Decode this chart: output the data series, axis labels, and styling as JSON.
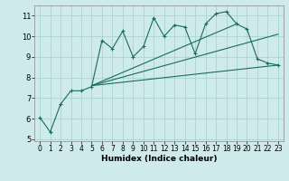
{
  "xlabel": "Humidex (Indice chaleur)",
  "bg_color": "#ceeaea",
  "line_color": "#1a6b60",
  "grid_color": "#aad4d4",
  "xlim": [
    -0.5,
    23.5
  ],
  "ylim": [
    4.9,
    11.5
  ],
  "xticks": [
    0,
    1,
    2,
    3,
    4,
    5,
    6,
    7,
    8,
    9,
    10,
    11,
    12,
    13,
    14,
    15,
    16,
    17,
    18,
    19,
    20,
    21,
    22,
    23
  ],
  "yticks": [
    5,
    6,
    7,
    8,
    9,
    10,
    11
  ],
  "main_x": [
    0,
    1,
    2,
    3,
    4,
    5,
    6,
    7,
    8,
    9,
    10,
    11,
    12,
    13,
    14,
    15,
    16,
    17,
    18,
    19,
    20,
    21,
    22,
    23
  ],
  "main_y": [
    6.05,
    5.35,
    6.7,
    7.35,
    7.35,
    7.55,
    9.8,
    9.4,
    10.25,
    9.0,
    9.5,
    10.9,
    10.0,
    10.55,
    10.45,
    9.15,
    10.6,
    11.1,
    11.2,
    10.6,
    10.35,
    8.9,
    8.7,
    8.6
  ],
  "line2_x": [
    5,
    23
  ],
  "line2_y": [
    7.6,
    8.6
  ],
  "line3_x": [
    5,
    19
  ],
  "line3_y": [
    7.6,
    10.6
  ],
  "line4_x": [
    5,
    23
  ],
  "line4_y": [
    7.6,
    10.1
  ]
}
